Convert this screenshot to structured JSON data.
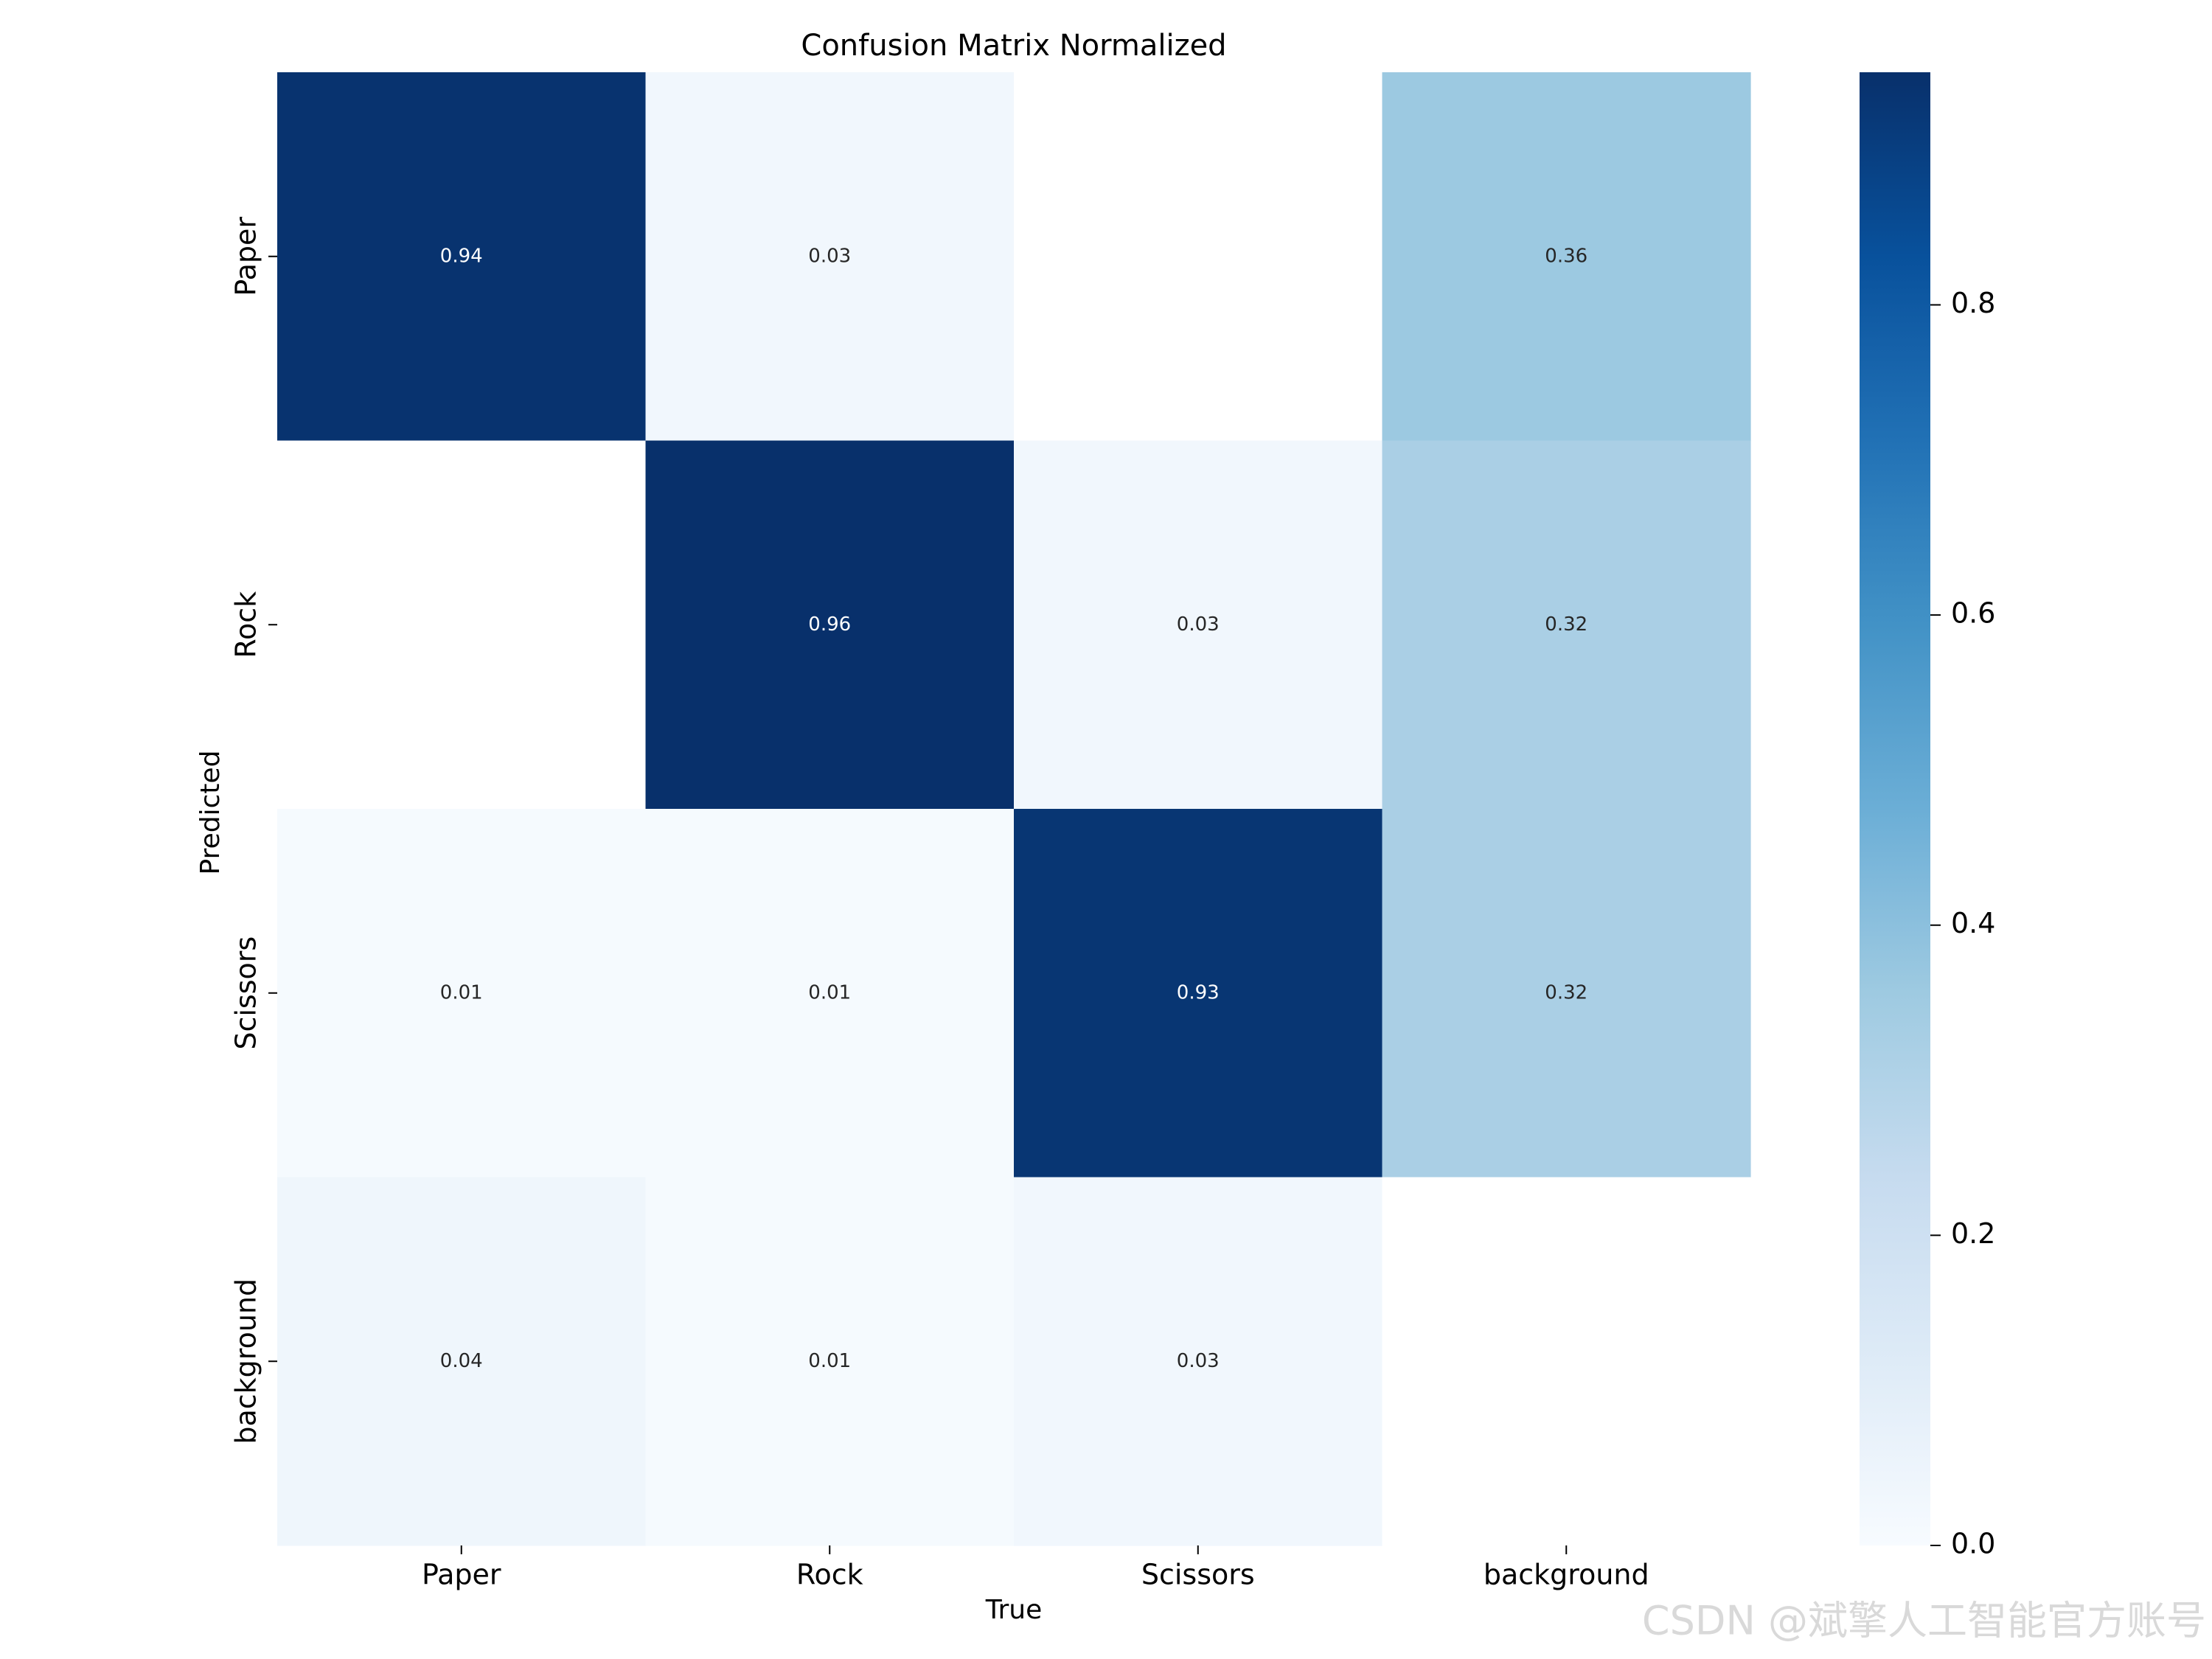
{
  "chart_data": {
    "type": "heatmap",
    "title": "Confusion Matrix Normalized",
    "xlabel": "True",
    "ylabel": "Predicted",
    "x_categories": [
      "Paper",
      "Rock",
      "Scissors",
      "background"
    ],
    "y_categories": [
      "Paper",
      "Rock",
      "Scissors",
      "background"
    ],
    "values": [
      [
        0.94,
        0.03,
        0.0,
        0.36
      ],
      [
        0.0,
        0.96,
        0.03,
        0.32
      ],
      [
        0.01,
        0.01,
        0.93,
        0.32
      ],
      [
        0.04,
        0.01,
        0.03,
        0.0
      ]
    ],
    "hidden_zero_cells": true,
    "vmin": 0.0,
    "vmax": 0.95,
    "colormap": "Blues",
    "colorbar_ticks": [
      0.0,
      0.2,
      0.4,
      0.6,
      0.8
    ],
    "colorbar_tick_labels": [
      "0.0",
      "0.2",
      "0.4",
      "0.6",
      "0.8"
    ],
    "grid": false
  },
  "watermark": "CSDN @斌擎人工智能官方账号",
  "colors": {
    "background": "#ffffff",
    "annotation_light": "#ffffff",
    "annotation_dark": "#262626",
    "watermark": "#d9d9d9"
  }
}
